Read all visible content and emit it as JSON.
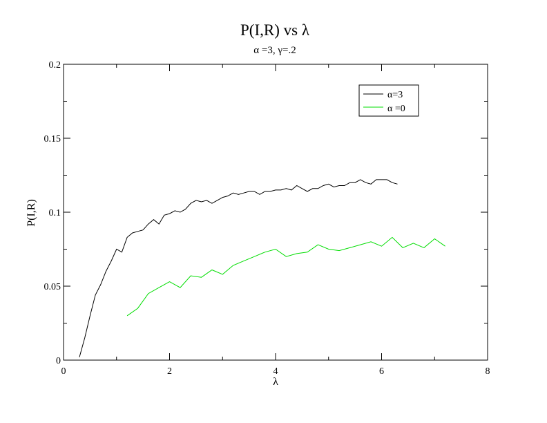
{
  "chart_data": {
    "type": "line",
    "title": "P(I,R) vs λ",
    "subtitle": "α =3, γ=.2",
    "xlabel": "λ",
    "ylabel": "P(I,R)",
    "xlim": [
      0,
      8
    ],
    "ylim": [
      0,
      0.2
    ],
    "xticks": [
      0,
      2,
      4,
      6,
      8
    ],
    "yticks": [
      0,
      0.05,
      0.1,
      0.15,
      0.2
    ],
    "xtick_labels": [
      "0",
      "2",
      "4",
      "6",
      "8"
    ],
    "ytick_labels": [
      "0",
      "0.05",
      "0.1",
      "0.15",
      "0.2"
    ],
    "grid": false,
    "legend_position": "top-right",
    "series": [
      {
        "name": "α=3",
        "color": "#000000",
        "x": [
          0.3,
          0.4,
          0.5,
          0.6,
          0.7,
          0.8,
          0.9,
          1.0,
          1.1,
          1.2,
          1.3,
          1.4,
          1.5,
          1.6,
          1.7,
          1.8,
          1.9,
          2.0,
          2.1,
          2.2,
          2.3,
          2.4,
          2.5,
          2.6,
          2.7,
          2.8,
          2.9,
          3.0,
          3.1,
          3.2,
          3.3,
          3.4,
          3.5,
          3.6,
          3.7,
          3.8,
          3.9,
          4.0,
          4.1,
          4.2,
          4.3,
          4.4,
          4.5,
          4.6,
          4.7,
          4.8,
          4.9,
          5.0,
          5.1,
          5.2,
          5.3,
          5.4,
          5.5,
          5.6,
          5.7,
          5.8,
          5.9,
          6.0,
          6.1,
          6.2,
          6.3
        ],
        "y": [
          0.002,
          0.015,
          0.03,
          0.044,
          0.051,
          0.06,
          0.067,
          0.075,
          0.073,
          0.083,
          0.086,
          0.087,
          0.088,
          0.092,
          0.095,
          0.092,
          0.098,
          0.099,
          0.101,
          0.1,
          0.102,
          0.106,
          0.108,
          0.107,
          0.108,
          0.106,
          0.108,
          0.11,
          0.111,
          0.113,
          0.112,
          0.113,
          0.114,
          0.114,
          0.112,
          0.114,
          0.114,
          0.115,
          0.115,
          0.116,
          0.115,
          0.118,
          0.116,
          0.114,
          0.116,
          0.116,
          0.118,
          0.119,
          0.117,
          0.118,
          0.118,
          0.12,
          0.12,
          0.122,
          0.12,
          0.119,
          0.122,
          0.122,
          0.122,
          0.12,
          0.119
        ]
      },
      {
        "name": "α =0",
        "color": "#00dd00",
        "x": [
          1.2,
          1.4,
          1.6,
          1.8,
          2.0,
          2.2,
          2.4,
          2.6,
          2.8,
          3.0,
          3.2,
          3.4,
          3.6,
          3.8,
          4.0,
          4.2,
          4.4,
          4.6,
          4.8,
          5.0,
          5.2,
          5.4,
          5.6,
          5.8,
          6.0,
          6.2,
          6.4,
          6.6,
          6.8,
          7.0,
          7.2
        ],
        "y": [
          0.03,
          0.035,
          0.045,
          0.049,
          0.053,
          0.049,
          0.057,
          0.056,
          0.061,
          0.058,
          0.064,
          0.067,
          0.07,
          0.073,
          0.075,
          0.07,
          0.072,
          0.073,
          0.078,
          0.075,
          0.074,
          0.076,
          0.078,
          0.08,
          0.077,
          0.083,
          0.076,
          0.079,
          0.076,
          0.082,
          0.077
        ]
      }
    ]
  }
}
